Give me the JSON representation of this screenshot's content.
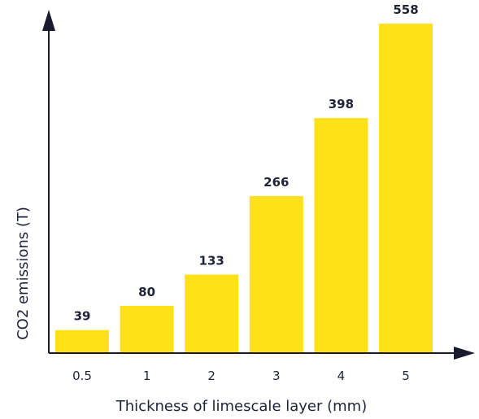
{
  "chart_data": {
    "type": "bar",
    "title": "",
    "xlabel": "Thickness of limescale layer (mm)",
    "ylabel": "CO2 emissions (T)",
    "categories": [
      "0.5",
      "1",
      "2",
      "3",
      "4",
      "5"
    ],
    "values": [
      39,
      80,
      133,
      266,
      398,
      558
    ],
    "value_labels": [
      "39",
      "80",
      "133",
      "266",
      "398",
      "558"
    ],
    "ylim": [
      0,
      558
    ],
    "grid": false,
    "legend": "none",
    "bar_color": "#FFE119",
    "axis_color": "#1a1a2e",
    "text_color": "#1f2338"
  }
}
